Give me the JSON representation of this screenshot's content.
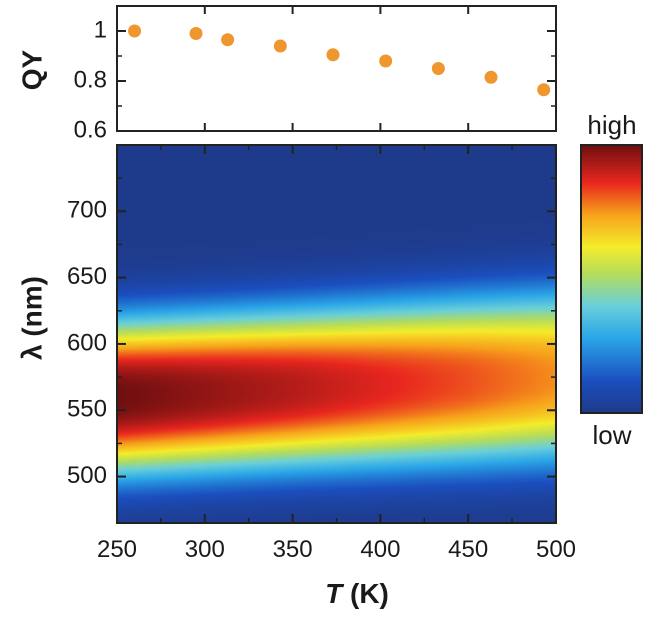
{
  "chart_data": [
    {
      "type": "scatter",
      "ylabel": "QY",
      "x": [
        260,
        295,
        313,
        343,
        373,
        403,
        433,
        463,
        493
      ],
      "y": [
        1.0,
        0.99,
        0.965,
        0.94,
        0.905,
        0.88,
        0.85,
        0.815,
        0.765
      ],
      "xlim": [
        250,
        500
      ],
      "ylim": [
        0.6,
        1.1
      ],
      "yticks": [
        "0.6",
        "0.8",
        "1"
      ],
      "yticks_values": [
        0.6,
        0.8,
        1.0
      ],
      "marker_color": "#f0962e",
      "grid": false
    },
    {
      "type": "heatmap",
      "xlabel_italic": "T",
      "xlabel_unit": "(K)",
      "ylabel": "λ (nm)",
      "xlim": [
        250,
        500
      ],
      "ylim": [
        465,
        750
      ],
      "xticks": [
        "250",
        "300",
        "350",
        "400",
        "450",
        "500"
      ],
      "xticks_values": [
        250,
        300,
        350,
        400,
        450,
        500
      ],
      "yticks": [
        "500",
        "550",
        "600",
        "650",
        "700"
      ],
      "yticks_values": [
        500,
        550,
        600,
        650,
        700
      ],
      "colormap": "jet",
      "colorbar_high": "high",
      "colorbar_low": "low",
      "emission_peak_nm": {
        "T": [
          250,
          300,
          350,
          400,
          450,
          500
        ],
        "peak": [
          560,
          563,
          566,
          569,
          572,
          575
        ]
      },
      "emission_width_nm": {
        "T": [
          250,
          300,
          350,
          400,
          450,
          500
        ],
        "sigma": [
          44,
          44.5,
          45,
          46,
          47,
          48
        ]
      },
      "relative_intensity": {
        "T": [
          250,
          300,
          350,
          400,
          450,
          500
        ],
        "amp": [
          1.0,
          0.96,
          0.92,
          0.87,
          0.82,
          0.76
        ]
      },
      "grid": false
    }
  ]
}
